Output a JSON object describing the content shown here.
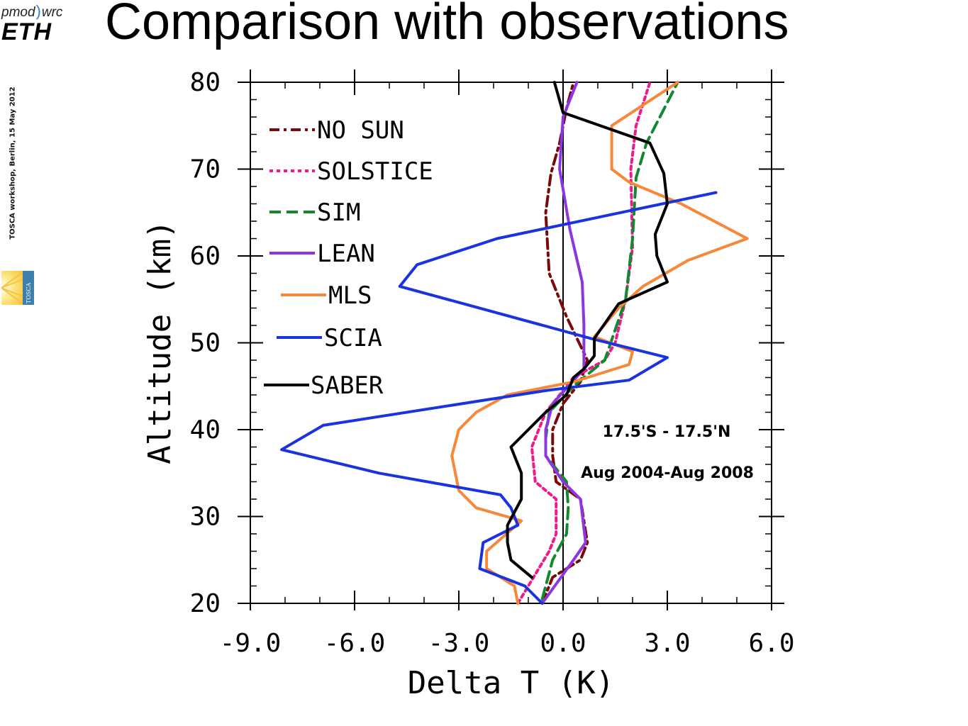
{
  "slide": {
    "title": "Comparison with observations",
    "logo_pmod": "pmod",
    "logo_wrc": "wrc",
    "logo_eth": "ETH",
    "sidebar_text": "TOSCA workshop, Berlin,  15 May 2012",
    "tosca_logo_text": "TOSCA"
  },
  "chart_data": {
    "type": "line",
    "xlabel": "Delta T (K)",
    "ylabel": "Altitude (km)",
    "xlim": [
      -9,
      6
    ],
    "ylim": [
      20,
      80
    ],
    "xticks": [
      "-9.0",
      "-6.0",
      "-3.0",
      "0.0",
      "3.0",
      "6.0"
    ],
    "xtick_values": [
      -9,
      -6,
      -3,
      0,
      3,
      6
    ],
    "yticks": [
      "20",
      "30",
      "40",
      "50",
      "60",
      "70",
      "80"
    ],
    "ytick_values": [
      20,
      30,
      40,
      50,
      60,
      70,
      80
    ],
    "zero_line": true,
    "legend_position": "top-left",
    "annotations": [
      "17.5'S - 17.5'N",
      "Aug 2004-Aug 2008"
    ],
    "series": [
      {
        "name": "NO SUN",
        "color": "#7a0a0a",
        "style": "dashdot",
        "x": [
          -0.6,
          -0.3,
          0.5,
          0.7,
          0.5,
          -0.2,
          -0.3,
          -0.3,
          0.0,
          0.5,
          0.7,
          0.1,
          -0.4,
          -0.5,
          -0.35,
          -0.1,
          0.1,
          0.3
        ],
        "y": [
          20,
          23,
          25,
          27,
          32,
          34,
          37,
          40,
          43,
          45.5,
          48,
          53,
          58,
          65,
          69.5,
          73,
          77,
          80
        ]
      },
      {
        "name": "SOLSTICE",
        "color": "#ee1a8c",
        "style": "dotted",
        "x": [
          -1.3,
          -0.4,
          -0.2,
          -0.2,
          -0.8,
          -0.9,
          -0.5,
          0.3,
          1.2,
          1.5,
          1.8,
          2.0,
          1.95,
          2.1,
          2.5
        ],
        "y": [
          20,
          26,
          28,
          32,
          34,
          38,
          42,
          46,
          48,
          50,
          55,
          61,
          70,
          75,
          80
        ]
      },
      {
        "name": "SIM",
        "color": "#118a2e",
        "style": "dashed",
        "x": [
          -0.6,
          -0.3,
          0.1,
          0.15,
          0.1,
          -0.5,
          -0.5,
          -0.4,
          0.3,
          1.2,
          1.8,
          2.0,
          2.1,
          2.4,
          3.3
        ],
        "y": [
          20.5,
          25,
          28,
          31,
          34,
          37,
          39,
          42,
          45,
          48,
          55,
          62,
          69,
          73,
          80
        ]
      },
      {
        "name": "LEAN",
        "color": "#8c35e0",
        "style": "solid",
        "x": [
          -0.6,
          0.3,
          0.65,
          0.5,
          0.0,
          -0.5,
          -0.5,
          -0.3,
          0.6,
          0.6,
          0.55,
          0.2,
          -0.1,
          0.0,
          0.4
        ],
        "y": [
          20,
          25,
          27,
          32,
          34,
          37,
          40,
          43,
          47,
          52,
          57,
          63,
          70,
          76,
          80
        ]
      },
      {
        "name": "MLS",
        "color": "#f7883a",
        "style": "solid",
        "x": [
          -1.3,
          -1.4,
          -2.2,
          -2.2,
          -1.2,
          -2.5,
          -3.0,
          -3.2,
          -3.0,
          -2.5,
          -1.6,
          0.3,
          1.9,
          2.0,
          0.9,
          1.6,
          2.3,
          3.6,
          5.3,
          3.4,
          1.9,
          1.4,
          1.4,
          3.3
        ],
        "y": [
          20,
          22,
          24,
          26,
          29.5,
          31,
          33,
          37,
          40,
          42,
          44,
          45.5,
          47.5,
          49,
          50.7,
          54,
          56.5,
          59.5,
          62,
          66,
          68.5,
          70,
          75,
          80
        ]
      },
      {
        "name": "SCIA",
        "color": "#1a33e0",
        "style": "solid",
        "x": [
          -0.6,
          -1.1,
          -2.4,
          -2.3,
          -1.3,
          -1.5,
          -1.8,
          -5.3,
          -8.1,
          -6.9,
          -0.5,
          1.9,
          3.0,
          0.8,
          -4.7,
          -4.2,
          -1.9,
          4.4
        ],
        "y": [
          20,
          22,
          24,
          27,
          29,
          31,
          32.5,
          35,
          37.7,
          40.5,
          44.5,
          45.7,
          48.3,
          50.5,
          56.5,
          59,
          62,
          67.3
        ]
      },
      {
        "name": "SABER",
        "color": "#000000",
        "style": "solid",
        "x": [
          -0.9,
          -1.5,
          -1.6,
          -1.6,
          -1.2,
          -1.2,
          -1.5,
          -1.0,
          -0.5,
          0.1,
          0.2,
          0.3,
          0.6,
          0.9,
          0.9,
          1.6,
          3.0,
          2.7,
          2.65,
          3.0,
          2.9,
          2.5,
          0.0,
          -0.25
        ],
        "y": [
          23,
          25,
          27,
          29,
          32,
          35,
          38,
          40,
          42,
          44,
          45,
          46,
          47,
          48.5,
          50.5,
          54.5,
          57,
          60,
          62.5,
          66,
          69.5,
          73,
          76.5,
          80
        ]
      }
    ]
  }
}
